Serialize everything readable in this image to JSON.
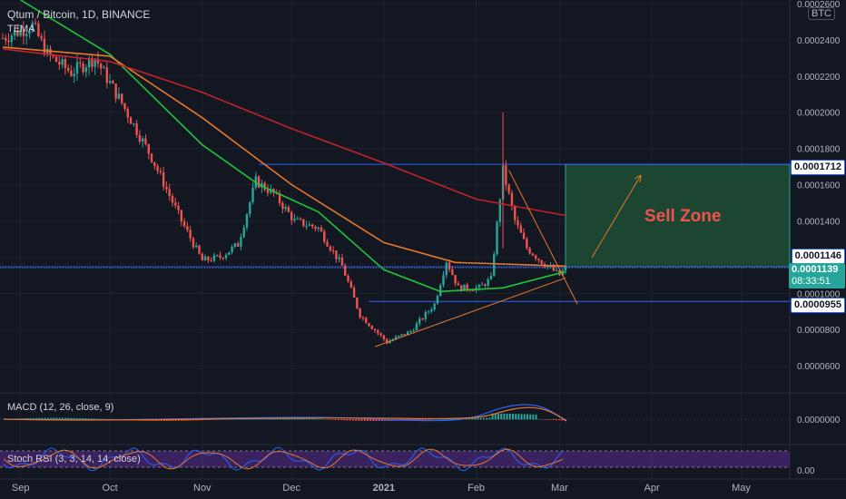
{
  "header": {
    "symbol": "Qtum / Bitcoin, 1D, BINANCE",
    "indicator": "TEMA"
  },
  "currency_badge": "BTC",
  "annotations": {
    "sell_zone": "Sell Zone"
  },
  "price_tags": {
    "upper": "0.0001712",
    "mid": "0.0001146",
    "current": "0.0001139",
    "countdown": "08:33:51",
    "lower": "0.0000955"
  },
  "colors": {
    "background": "#131722",
    "up": "#26a69a",
    "down": "#ef5350",
    "ma_green": "#1fc33c",
    "ma_orange": "#e5782c",
    "ma_red": "#c2212b",
    "blue_line": "#2962ff",
    "zone_fill": "#1e4d35",
    "stoch_band": "#5b2c8f"
  },
  "chart_data": [
    {
      "type": "candlestick",
      "title": "Qtum / Bitcoin, 1D, BINANCE",
      "x_ticks": [
        "Sep",
        "Oct",
        "Nov",
        "Dec",
        "2021",
        "Feb",
        "Mar",
        "Apr",
        "May"
      ],
      "y_ticks": [
        "0.0000600",
        "0.0000800",
        "0.0001000",
        "0.0001200",
        "0.0001400",
        "0.0001600",
        "0.0001800",
        "0.0002000",
        "0.0002200",
        "0.0002400",
        "0.0002600"
      ],
      "ylim": [
        4.5e-05,
        0.000262
      ],
      "scale": "linear",
      "grid": true,
      "x_start": "2020-08-26",
      "ohlc_keypoints": [
        {
          "date": "2020-08-26",
          "close": 0.000241
        },
        {
          "date": "2020-09-05",
          "close": 0.000248
        },
        {
          "date": "2020-09-10",
          "close": 0.000232
        },
        {
          "date": "2020-09-18",
          "close": 0.000222
        },
        {
          "date": "2020-09-26",
          "close": 0.00023
        },
        {
          "date": "2020-10-05",
          "close": 0.000205
        },
        {
          "date": "2020-10-15",
          "close": 0.000175
        },
        {
          "date": "2020-10-25",
          "close": 0.00014
        },
        {
          "date": "2020-11-01",
          "close": 0.000118
        },
        {
          "date": "2020-11-07",
          "close": 0.00012
        },
        {
          "date": "2020-11-13",
          "close": 0.000127
        },
        {
          "date": "2020-11-19",
          "close": 0.000162
        },
        {
          "date": "2020-11-25",
          "close": 0.000155
        },
        {
          "date": "2020-12-02",
          "close": 0.00014
        },
        {
          "date": "2020-12-10",
          "close": 0.000136
        },
        {
          "date": "2020-12-18",
          "close": 0.000115
        },
        {
          "date": "2020-12-24",
          "close": 8.8e-05
        },
        {
          "date": "2021-01-02",
          "close": 7.3e-05
        },
        {
          "date": "2021-01-10",
          "close": 7.9e-05
        },
        {
          "date": "2021-01-18",
          "close": 9.4e-05
        },
        {
          "date": "2021-01-22",
          "close": 0.000118
        },
        {
          "date": "2021-01-26",
          "close": 0.000103
        },
        {
          "date": "2021-02-02",
          "close": 0.000103
        },
        {
          "date": "2021-02-06",
          "close": 0.000108
        },
        {
          "date": "2021-02-10",
          "close": 0.000168
        },
        {
          "date": "2021-02-14",
          "close": 0.00014
        },
        {
          "date": "2021-02-18",
          "close": 0.000125
        },
        {
          "date": "2021-02-24",
          "close": 0.000116
        },
        {
          "date": "2021-03-01",
          "close": 0.00011
        },
        {
          "date": "2021-03-03",
          "close": 0.0001139
        }
      ],
      "moving_averages": [
        {
          "color": "green",
          "points": [
            [
              "2020-09-01",
              0.000262
            ],
            [
              "2020-10-01",
              0.000232
            ],
            [
              "2020-11-01",
              0.000182
            ],
            [
              "2020-11-20",
              0.00016
            ],
            [
              "2020-12-10",
              0.000145
            ],
            [
              "2021-01-01",
              0.000113
            ],
            [
              "2021-01-20",
              0.000101
            ],
            [
              "2021-02-10",
              0.000103
            ],
            [
              "2021-03-03",
              0.000112
            ]
          ]
        },
        {
          "color": "orange",
          "points": [
            [
              "2020-08-26",
              0.000236
            ],
            [
              "2020-10-01",
              0.000231
            ],
            [
              "2020-11-01",
              0.000197
            ],
            [
              "2020-12-01",
              0.00016
            ],
            [
              "2021-01-01",
              0.000128
            ],
            [
              "2021-01-25",
              0.000117
            ],
            [
              "2021-03-03",
              0.000115
            ]
          ]
        },
        {
          "color": "red",
          "points": [
            [
              "2020-08-26",
              0.000235
            ],
            [
              "2020-10-01",
              0.000228
            ],
            [
              "2020-11-01",
              0.000211
            ],
            [
              "2020-12-01",
              0.000191
            ],
            [
              "2021-01-01",
              0.000172
            ],
            [
              "2021-02-01",
              0.000152
            ],
            [
              "2021-03-03",
              0.000143
            ]
          ]
        }
      ],
      "horizontal_levels": [
        0.0001712,
        0.0001146,
        9.55e-05
      ],
      "zone": {
        "label": "Sell Zone",
        "from_date": "2021-03-03",
        "price_low": 0.0001146,
        "price_high": 0.0001712
      }
    },
    {
      "type": "histogram",
      "title": "MACD (12, 26, close, 9)",
      "y_ticks": [
        "0.0000000"
      ],
      "series": [
        {
          "name": "MACD"
        },
        {
          "name": "Signal"
        },
        {
          "name": "Histogram"
        }
      ]
    },
    {
      "type": "line",
      "title": "Stoch RSI (3, 3, 14, 14, close)",
      "y_ticks": [
        "0.00"
      ],
      "ylim": [
        0,
        100
      ],
      "series": [
        {
          "name": "K"
        },
        {
          "name": "D"
        }
      ]
    }
  ]
}
